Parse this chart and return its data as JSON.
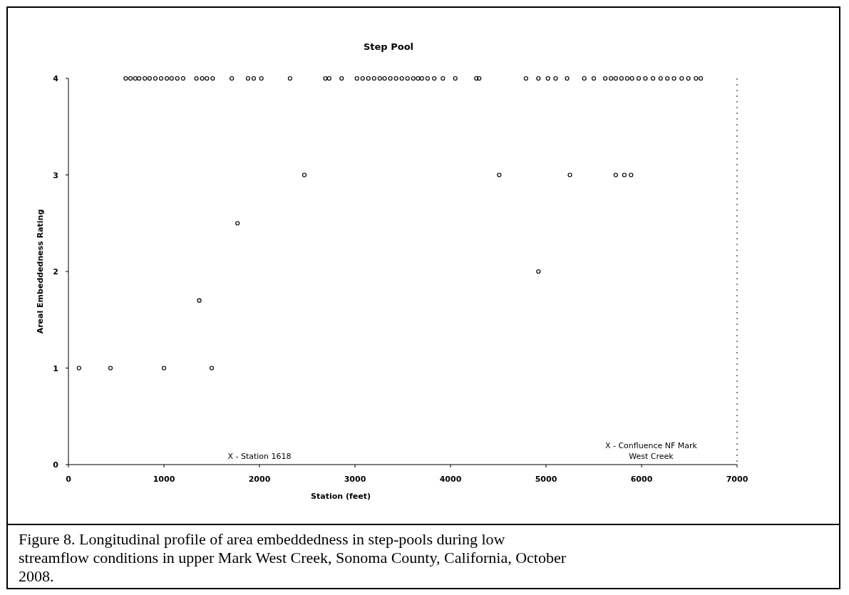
{
  "chart_data": {
    "type": "scatter",
    "title": "Step Pool",
    "xlabel": "Station (feet)",
    "ylabel": "Areal Embeddedness Rating",
    "xlim": [
      0,
      7000
    ],
    "xticks": [
      0,
      1000,
      2000,
      3000,
      4000,
      5000,
      6000,
      7000
    ],
    "ylim": [
      0,
      4
    ],
    "yticks": [
      0,
      1,
      2,
      3,
      4
    ],
    "grid": false,
    "marker": "circle",
    "series": [
      {
        "color": "#000000",
        "x": [
          110,
          440,
          1000,
          1500,
          1370,
          1770,
          2470,
          4510,
          5250,
          5730,
          5820,
          5890,
          4920,
          600,
          650,
          700,
          740,
          800,
          850,
          910,
          970,
          1030,
          1080,
          1140,
          1200,
          1340,
          1400,
          1450,
          1510,
          1710,
          1880,
          1940,
          2020,
          2320,
          2690,
          2730,
          2860,
          3020,
          3080,
          3140,
          3200,
          3260,
          3310,
          3370,
          3430,
          3490,
          3550,
          3610,
          3660,
          3700,
          3760,
          3830,
          3920,
          4050,
          4270,
          4300,
          4790,
          4920,
          5020,
          5100,
          5220,
          5400,
          5500,
          5620,
          5680,
          5730,
          5790,
          5850,
          5900,
          5970,
          6040,
          6120,
          6200,
          6270,
          6340,
          6420,
          6490,
          6570,
          6620
        ],
        "values": [
          1,
          1,
          1,
          1,
          1.7,
          2.5,
          3,
          3,
          3,
          3,
          3,
          3,
          2,
          4,
          4,
          4,
          4,
          4,
          4,
          4,
          4,
          4,
          4,
          4,
          4,
          4,
          4,
          4,
          4,
          4,
          4,
          4,
          4,
          4,
          4,
          4,
          4,
          4,
          4,
          4,
          4,
          4,
          4,
          4,
          4,
          4,
          4,
          4,
          4,
          4,
          4,
          4,
          4,
          4,
          4,
          4,
          4,
          4,
          4,
          4,
          4,
          4,
          4,
          4,
          4,
          4,
          4,
          4,
          4,
          4,
          4,
          4,
          4,
          4,
          4,
          4,
          4,
          4,
          4
        ]
      }
    ],
    "ref_lines": [
      {
        "axis": "x",
        "value": 7000,
        "line_style": "dotted",
        "color": "#000000"
      }
    ],
    "annotations": [
      "X - Station 1618",
      "X - Confluence NF Mark West Creek",
      "Figure 8.  Longitudinal profile of area embeddedness in step-pools during low streamflow conditions in upper Mark West Creek, Sonoma County, California, October 2008."
    ]
  }
}
